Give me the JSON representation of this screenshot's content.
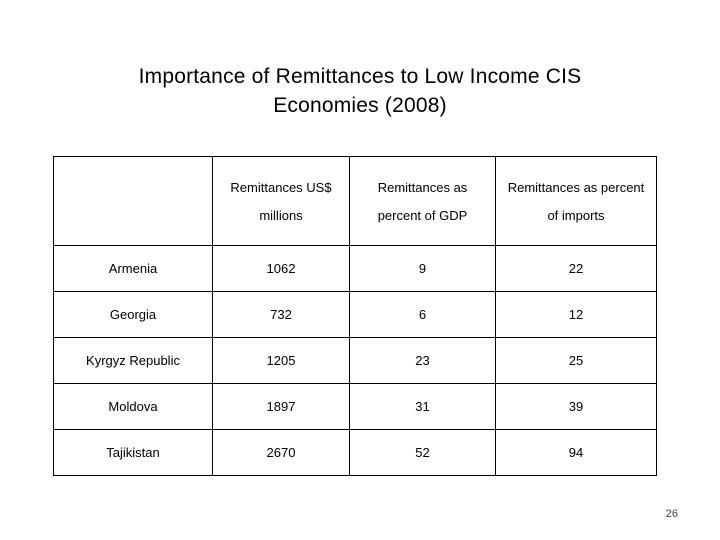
{
  "title": {
    "line1": "Importance of Remittances to Low Income CIS",
    "line2": "Economies (2008)"
  },
  "table": {
    "columns": [
      {
        "line1": "",
        "line2": ""
      },
      {
        "line1": "Remittances US$",
        "line2": "millions"
      },
      {
        "line1": "Remittances as",
        "line2": "percent of GDP"
      },
      {
        "line1": "Remittances as percent",
        "line2": "of imports"
      }
    ],
    "rows": [
      {
        "country": "Armenia",
        "remittances_usd_millions": "1062",
        "percent_gdp": "9",
        "percent_imports": "22"
      },
      {
        "country": "Georgia",
        "remittances_usd_millions": "732",
        "percent_gdp": "6",
        "percent_imports": "12"
      },
      {
        "country": "Kyrgyz Republic",
        "remittances_usd_millions": "1205",
        "percent_gdp": "23",
        "percent_imports": "25"
      },
      {
        "country": "Moldova",
        "remittances_usd_millions": "1897",
        "percent_gdp": "31",
        "percent_imports": "39"
      },
      {
        "country": "Tajikistan",
        "remittances_usd_millions": "2670",
        "percent_gdp": "52",
        "percent_imports": "94"
      }
    ]
  },
  "page_number": "26"
}
